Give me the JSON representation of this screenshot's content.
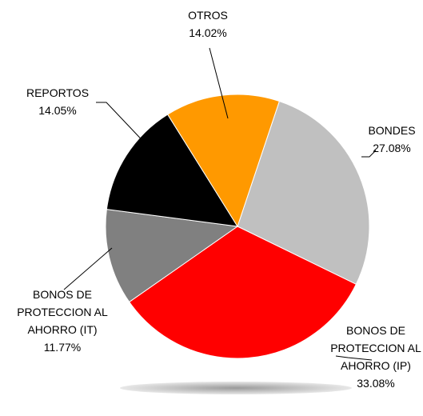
{
  "chart_data": {
    "type": "pie",
    "categories": [
      "BONDES",
      "BONOS DE PROTECCION AL AHORRO (IP)",
      "BONOS DE PROTECCION AL AHORRO (IT)",
      "REPORTOS",
      "OTROS"
    ],
    "values": [
      27.08,
      33.08,
      11.77,
      14.05,
      14.02
    ],
    "value_labels": [
      "27.08%",
      "33.08%",
      "11.77%",
      "14.05%",
      "14.02%"
    ],
    "colors": [
      "#c0c0c0",
      "#ff0000",
      "#808080",
      "#000000",
      "#ff9900"
    ]
  }
}
